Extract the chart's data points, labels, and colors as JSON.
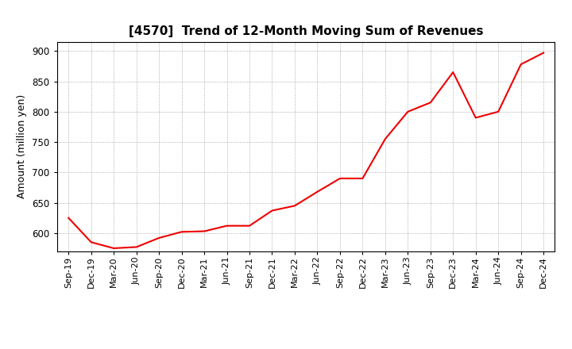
{
  "title": "[4570]  Trend of 12-Month Moving Sum of Revenues",
  "ylabel": "Amount (million yen)",
  "line_color": "#ee0000",
  "line_width": 1.5,
  "background_color": "#ffffff",
  "grid_color": "#999999",
  "ylim": [
    570,
    915
  ],
  "yticks": [
    600,
    650,
    700,
    750,
    800,
    850,
    900
  ],
  "x_labels": [
    "Sep-19",
    "Dec-19",
    "Mar-20",
    "Jun-20",
    "Sep-20",
    "Dec-20",
    "Mar-21",
    "Jun-21",
    "Sep-21",
    "Dec-21",
    "Mar-22",
    "Jun-22",
    "Sep-22",
    "Dec-22",
    "Mar-23",
    "Jun-23",
    "Sep-23",
    "Dec-23",
    "Mar-24",
    "Jun-24",
    "Sep-24",
    "Dec-24"
  ],
  "values": [
    625,
    585,
    575,
    577,
    592,
    602,
    603,
    612,
    612,
    637,
    645,
    668,
    690,
    690,
    755,
    800,
    815,
    865,
    790,
    800,
    878,
    897
  ]
}
